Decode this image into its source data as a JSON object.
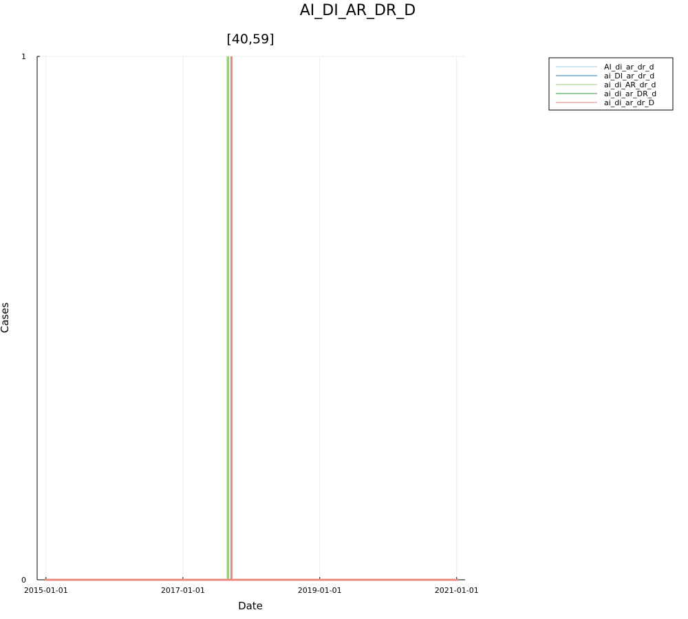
{
  "chart_data": {
    "type": "line",
    "title": "AI_DI_AR_DR_D",
    "subtitle": "[40,59]",
    "xlabel": "Date",
    "ylabel": "Cases",
    "x_ticks": [
      "2015-01-01",
      "2017-01-01",
      "2019-01-01",
      "2021-01-01"
    ],
    "y_ticks": [
      "0",
      "1"
    ],
    "xlim": [
      "2014-11-15",
      "2021-02-15"
    ],
    "ylim": [
      0,
      1
    ],
    "grid": true,
    "legend_position": "top-right-outside",
    "series": [
      {
        "name": "AI_di_ar_dr_d",
        "color": "#9ecae1",
        "points": [
          [
            "2014-12-25",
            0
          ],
          [
            "2017-08-28",
            0
          ],
          [
            "2017-08-28",
            1
          ],
          [
            "2017-08-28",
            0
          ],
          [
            "2021-01-10",
            0
          ]
        ]
      },
      {
        "name": "ai_DI_ar_dr_d",
        "color": "#1f77b4",
        "points": [
          [
            "2014-12-25",
            0
          ],
          [
            "2021-01-10",
            0
          ]
        ]
      },
      {
        "name": "ai_di_AR_dr_d",
        "color": "#98cf7e",
        "points": [
          [
            "2014-12-25",
            0
          ],
          [
            "2017-08-30",
            0
          ],
          [
            "2017-08-30",
            1
          ],
          [
            "2017-08-30",
            0
          ],
          [
            "2021-01-10",
            0
          ]
        ]
      },
      {
        "name": "ai_di_ar_DR_d",
        "color": "#2ca02c",
        "points": [
          [
            "2014-12-25",
            0
          ],
          [
            "2021-01-10",
            0
          ]
        ]
      },
      {
        "name": "ai_di_ar_dr_D",
        "color": "#e8897f",
        "points": [
          [
            "2014-12-25",
            0
          ],
          [
            "2017-09-17",
            0
          ],
          [
            "2017-09-17",
            1
          ],
          [
            "2017-09-17",
            0
          ],
          [
            "2021-01-10",
            0
          ]
        ]
      }
    ]
  }
}
